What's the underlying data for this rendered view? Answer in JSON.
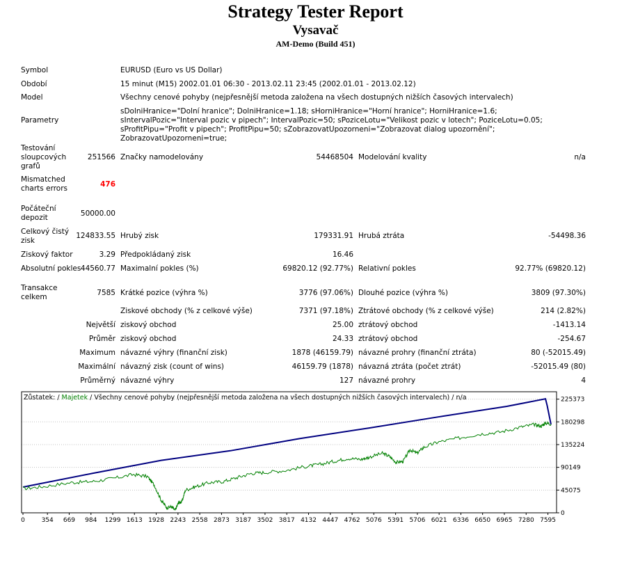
{
  "header": {
    "title": "Strategy Tester Report",
    "expert": "Vysavač",
    "server": "AM-Demo (Build 451)"
  },
  "info": {
    "symbol_label": "Symbol",
    "symbol_value": "EURUSD (Euro vs US Dollar)",
    "period_label": "Období",
    "period_value": "15 minut (M15) 2002.01.01 06:30 - 2013.02.11 23:45 (2002.01.01 - 2013.02.12)",
    "model_label": "Model",
    "model_value": "Všechny cenové pohyby (nejpřesnější metoda založena na všech dostupných nižších časových intervalech)",
    "params_label": "Parametry",
    "params_value": "sDolniHranice=\"Dolní hranice\"; DolniHranice=1.18; sHorniHranice=\"Horní hranice\"; HorniHranice=1.6; sIntervalPozic=\"Interval pozic v pipech\"; IntervalPozic=50; sPoziceLotu=\"Velikost pozic v lotech\"; PoziceLotu=0.05; sProfitPipu=\"Profit v pipech\"; ProfitPipu=50; sZobrazovatUpozorneni=\"Zobrazovat dialog upozornění\"; ZobrazovatUpozorneni=true;"
  },
  "stats": {
    "bars_label": "Testování sloupcových grafů",
    "bars_value": "251566",
    "ticks_label": "Značky namodelovány",
    "ticks_value": "54468504",
    "quality_label": "Modelování kvality",
    "quality_value": "n/a",
    "mismatch_label": "Mismatched charts errors",
    "mismatch_value": "476",
    "deposit_label": "Počáteční depozit",
    "deposit_value": "50000.00",
    "net_label": "Celkový čistý zisk",
    "net_value": "124833.55",
    "gross_profit_label": "Hrubý zisk",
    "gross_profit_value": "179331.91",
    "gross_loss_label": "Hrubá ztráta",
    "gross_loss_value": "-54498.36",
    "pf_label": "Ziskový faktor",
    "pf_value": "3.29",
    "payoff_label": "Předpokládaný zisk",
    "payoff_value": "16.46",
    "abs_dd_label": "Absolutní pokles",
    "abs_dd_value": "44560.77",
    "max_dd_label": "Maximalní pokles (%)",
    "max_dd_value": "69820.12 (92.77%)",
    "rel_dd_label": "Relativní pokles",
    "rel_dd_value": "92.77% (69820.12)",
    "trades_label": "Transakce celkem",
    "trades_value": "7585",
    "short_label": "Krátké pozice (výhra %)",
    "short_value": "3776 (97.06%)",
    "long_label": "Dlouhé pozice (výhra %)",
    "long_value": "3809 (97.30%)",
    "profit_trades_label": "Ziskové obchody (% z celkové výše)",
    "profit_trades_value": "7371 (97.18%)",
    "loss_trades_label": "Ztrátové obchody (% z celkové výše)",
    "loss_trades_value": "214 (2.82%)",
    "largest_label": "Největší",
    "largest_profit_label": "ziskový obchod",
    "largest_profit_value": "25.00",
    "largest_loss_label": "ztrátový obchod",
    "largest_loss_value": "-1413.14",
    "average_label": "Průměr",
    "average_profit_label": "ziskový obchod",
    "average_profit_value": "24.33",
    "average_loss_label": "ztrátový obchod",
    "average_loss_value": "-254.67",
    "maximum_label": "Maximum",
    "max_consec_wins_label": "návazné výhry (finanční zisk)",
    "max_consec_wins_value": "1878 (46159.79)",
    "max_consec_losses_label": "návazné prohry (finanční ztráta)",
    "max_consec_losses_value": "80 (-52015.49)",
    "maximal_label": "Maximální",
    "maximal_profit_label": "návazný zisk (count of wins)",
    "maximal_profit_value": "46159.79 (1878)",
    "maximal_loss_label": "návazná ztráta (počet ztrát)",
    "maximal_loss_value": "-52015.49 (80)",
    "avg_label": "Průměrný",
    "avg_wins_label": "návazné výhry",
    "avg_wins_value": "127",
    "avg_losses_label": "návazné prohry",
    "avg_losses_value": "4"
  },
  "chart_data": {
    "type": "line",
    "legend_parts": [
      "Zůstatek: / ",
      "Majetek",
      " / Všechny cenové pohyby (nejpřesnější metoda založena na všech dostupných nižších časových intervalech) / n/a"
    ],
    "x_ticks": [
      "0",
      "354",
      "669",
      "984",
      "1299",
      "1613",
      "1928",
      "2243",
      "2558",
      "2873",
      "3187",
      "3502",
      "3817",
      "4132",
      "4447",
      "4762",
      "5076",
      "5391",
      "5706",
      "6021",
      "6336",
      "6650",
      "6965",
      "7280",
      "7595"
    ],
    "y_ticks": [
      "225373",
      "180298",
      "135224",
      "90149",
      "45075",
      "0"
    ],
    "ylim": [
      0,
      240000
    ],
    "xlim": [
      0,
      7700
    ],
    "colors": {
      "balance": "#000080",
      "equity": "#008000",
      "grid": "#c0c0c0",
      "border": "#000000"
    },
    "series": [
      {
        "name": "Zůstatek",
        "color": "#000080",
        "x": [
          0,
          1000,
          2000,
          3000,
          4000,
          5000,
          6000,
          7000,
          7560,
          7585,
          7640
        ],
        "values": [
          51000,
          78000,
          104000,
          123000,
          147000,
          168000,
          190000,
          211000,
          226000,
          212000,
          175000
        ]
      },
      {
        "name": "Majetek",
        "color": "#008000",
        "x": [
          0,
          300,
          700,
          1000,
          1300,
          1600,
          1800,
          1900,
          2000,
          2080,
          2150,
          2200,
          2250,
          2300,
          2350,
          2500,
          2700,
          2900,
          3100,
          3300,
          3500,
          3800,
          4100,
          4300,
          4500,
          4700,
          4900,
          5000,
          5200,
          5300,
          5400,
          5500,
          5600,
          5700,
          5800,
          6000,
          6300,
          6600,
          6900,
          7200,
          7400,
          7500,
          7560,
          7640
        ],
        "values": [
          48000,
          52000,
          60000,
          62000,
          68000,
          76000,
          72000,
          55000,
          25000,
          10000,
          12000,
          5000,
          20000,
          22000,
          45000,
          52000,
          60000,
          62000,
          70000,
          78000,
          80000,
          84000,
          92000,
          96000,
          102000,
          108000,
          106000,
          110000,
          118000,
          112000,
          100000,
          102000,
          125000,
          118000,
          130000,
          140000,
          148000,
          156000,
          160000,
          170000,
          175000,
          172000,
          178000,
          176000
        ]
      }
    ]
  }
}
